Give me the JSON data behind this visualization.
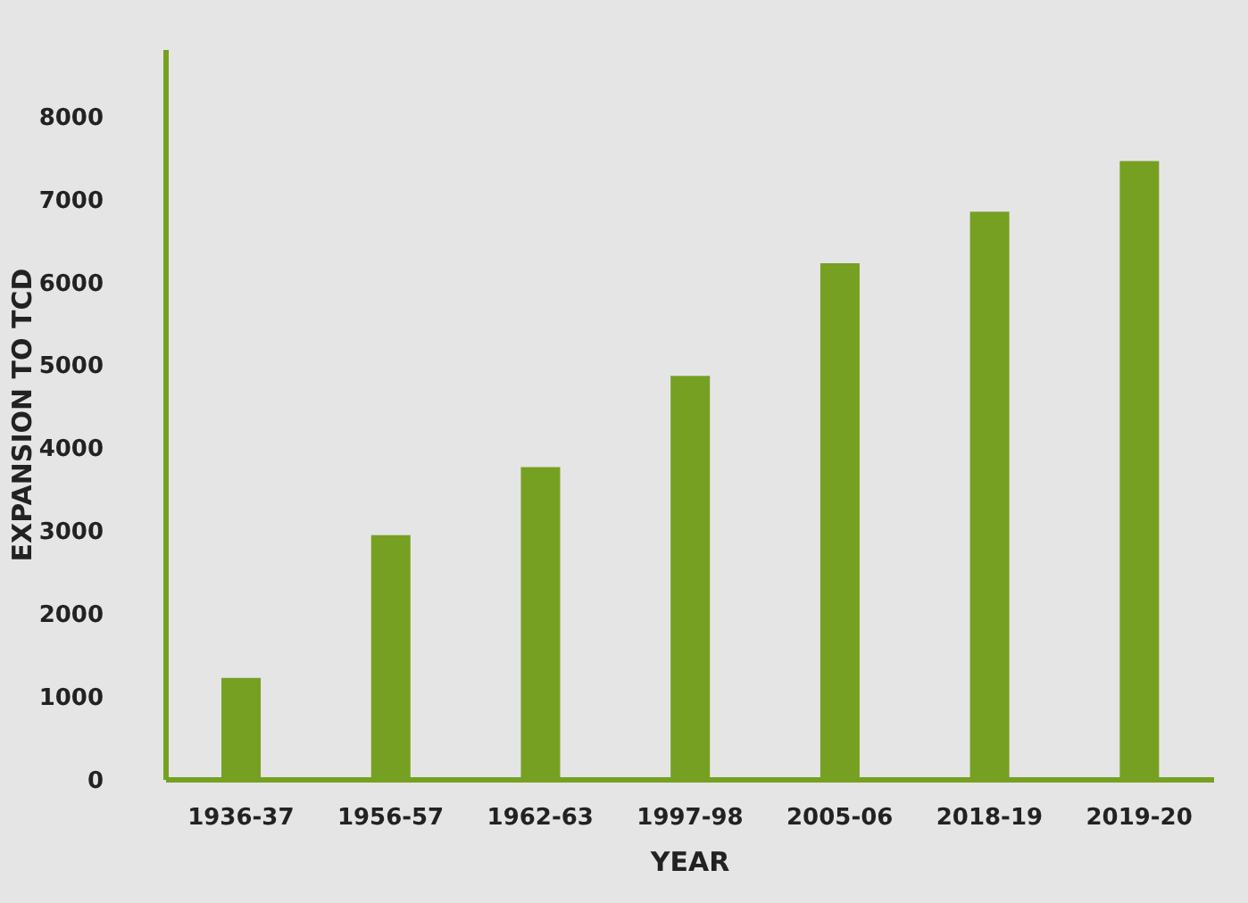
{
  "chart_data": {
    "type": "bar",
    "xlabel": "YEAR",
    "ylabel": "EXPANSION TO TCD",
    "categories": [
      "1936-37",
      "1956-57",
      "1962-63",
      "1997-98",
      "2005-06",
      "2018-19",
      "2019-20"
    ],
    "values": [
      1230,
      2950,
      3770,
      4870,
      6230,
      6850,
      7460
    ],
    "color": "#76a022",
    "ylim": [
      0,
      8800
    ],
    "yticks": [
      0,
      1000,
      2000,
      3000,
      4000,
      5000,
      6000,
      7000,
      8000
    ],
    "grid": false,
    "legend": false
  }
}
